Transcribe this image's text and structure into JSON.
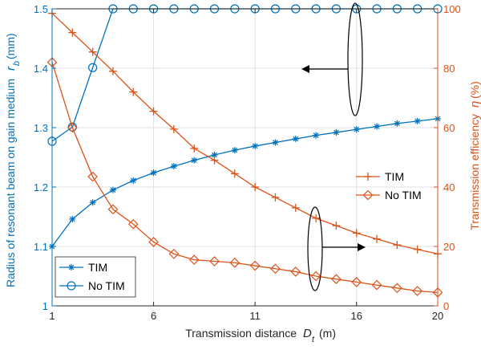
{
  "chart_data": {
    "type": "line",
    "xlabel": {
      "main": "Transmission distance",
      "symbol": "D",
      "sub": "t",
      "unit": "(m)"
    },
    "ylabel_left": {
      "main": "Radius of resonant beam on gain medium",
      "symbol": "r",
      "sub": "b",
      "unit": "(mm)"
    },
    "ylabel_right": {
      "main": "Transmission efficiency",
      "symbol": "η",
      "unit": "(%)"
    },
    "xlim": [
      1,
      20
    ],
    "ylim_left": [
      1,
      1.5
    ],
    "ylim_right": [
      0,
      100
    ],
    "x_ticks": [
      "1",
      "6",
      "11",
      "16",
      "20"
    ],
    "x_tick_values": [
      1,
      6,
      11,
      16,
      20
    ],
    "yleft_ticks": [
      "1",
      "1.1",
      "1.2",
      "1.3",
      "1.4",
      "1.5"
    ],
    "yleft_tick_values": [
      1,
      1.1,
      1.2,
      1.3,
      1.4,
      1.5
    ],
    "yright_ticks": [
      "0",
      "20",
      "40",
      "60",
      "80",
      "100"
    ],
    "yright_tick_values": [
      0,
      20,
      40,
      60,
      80,
      100
    ],
    "grid": true,
    "x": [
      1,
      2,
      3,
      4,
      5,
      6,
      7,
      8,
      9,
      10,
      11,
      12,
      13,
      14,
      15,
      16,
      17,
      18,
      19,
      20
    ],
    "series": [
      {
        "name": "TIM",
        "axis": "left",
        "marker": "asterisk",
        "color": "#0072BD",
        "values": [
          1.1,
          1.146,
          1.174,
          1.195,
          1.211,
          1.224,
          1.235,
          1.245,
          1.254,
          1.262,
          1.269,
          1.275,
          1.281,
          1.287,
          1.292,
          1.297,
          1.302,
          1.307,
          1.311,
          1.315
        ]
      },
      {
        "name": "No TIM",
        "axis": "left",
        "marker": "circle",
        "color": "#0072BD",
        "values": [
          1.277,
          1.301,
          1.401,
          1.5,
          1.5,
          1.5,
          1.5,
          1.5,
          1.5,
          1.5,
          1.5,
          1.5,
          1.5,
          1.5,
          1.5,
          1.5,
          1.5,
          1.5,
          1.5,
          1.5
        ]
      },
      {
        "name": "TIM",
        "axis": "right",
        "marker": "plus",
        "color": "#D95319",
        "values": [
          98.5,
          92.0,
          85.5,
          79.0,
          72.0,
          65.5,
          59.5,
          53.0,
          49.0,
          44.5,
          40.0,
          36.5,
          33.0,
          29.5,
          27.0,
          24.5,
          22.5,
          20.5,
          19.0,
          17.5
        ]
      },
      {
        "name": "No TIM",
        "axis": "right",
        "marker": "diamond",
        "color": "#D95319",
        "values": [
          82.0,
          60.0,
          43.5,
          32.5,
          27.5,
          21.5,
          17.5,
          15.5,
          15.0,
          14.5,
          13.5,
          12.5,
          11.5,
          10.0,
          9.0,
          8.0,
          7.0,
          6.0,
          5.0,
          4.5
        ]
      }
    ],
    "legends": [
      {
        "placement": "bottom-left",
        "entries": [
          "TIM",
          "No TIM"
        ]
      },
      {
        "placement": "center-right",
        "entries": [
          "TIM",
          "No TIM"
        ]
      }
    ],
    "annotations": [
      {
        "type": "ellipse-arrow",
        "direction": "left",
        "target_axis": "left"
      },
      {
        "type": "ellipse-arrow",
        "direction": "right",
        "target_axis": "right"
      }
    ]
  },
  "colors": {
    "left_axis": "#0072BD",
    "right_axis": "#D95319",
    "grid": "#DFDFDF",
    "box": "#262626"
  }
}
